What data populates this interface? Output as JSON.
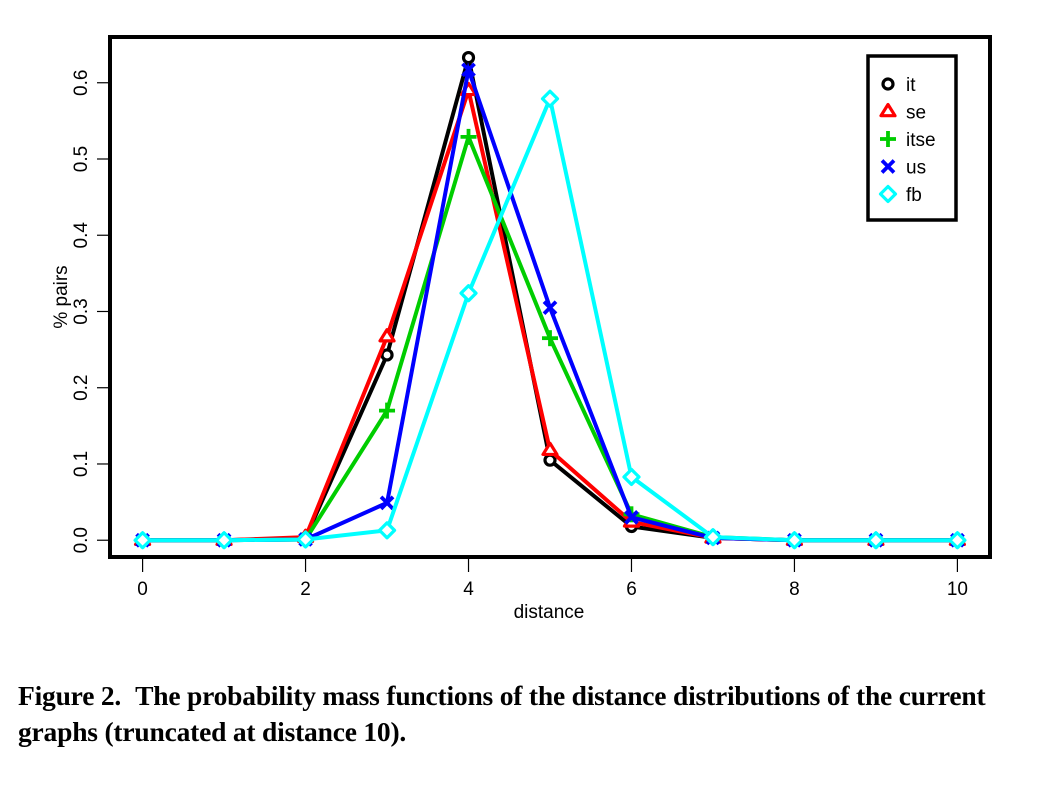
{
  "chart_data": {
    "type": "line",
    "title": "",
    "xlabel": "distance",
    "ylabel": "% pairs",
    "xlim": [
      -0.4,
      10.4
    ],
    "ylim": [
      -0.022,
      0.66
    ],
    "x": [
      0,
      1,
      2,
      3,
      4,
      5,
      6,
      7,
      8,
      9,
      10
    ],
    "xticks": [
      0,
      2,
      4,
      6,
      8,
      10
    ],
    "xtick_labels": [
      "0",
      "2",
      "4",
      "6",
      "8",
      "10"
    ],
    "yticks": [
      0.0,
      0.1,
      0.2,
      0.3,
      0.4,
      0.5,
      0.6
    ],
    "ytick_labels": [
      "0.0",
      "0.1",
      "0.2",
      "0.3",
      "0.4",
      "0.5",
      "0.6"
    ],
    "grid": false,
    "legend_position": "top-right",
    "series": [
      {
        "name": "it",
        "color": "#000000",
        "marker": "circle",
        "values": [
          0,
          0,
          0.003,
          0.243,
          0.633,
          0.105,
          0.018,
          0.003,
          0,
          0,
          0
        ]
      },
      {
        "name": "se",
        "color": "#ff0000",
        "marker": "triangle",
        "values": [
          0,
          0,
          0.004,
          0.267,
          0.59,
          0.118,
          0.024,
          0.003,
          0,
          0,
          0
        ]
      },
      {
        "name": "itse",
        "color": "#00cd00",
        "marker": "plus",
        "values": [
          0,
          0,
          0.001,
          0.17,
          0.529,
          0.265,
          0.034,
          0.004,
          0,
          0,
          0
        ]
      },
      {
        "name": "us",
        "color": "#0000ff",
        "marker": "cross",
        "values": [
          0,
          0,
          0.001,
          0.049,
          0.617,
          0.305,
          0.03,
          0.003,
          0,
          0,
          0
        ]
      },
      {
        "name": "fb",
        "color": "#00ffff",
        "marker": "diamond",
        "values": [
          0,
          0,
          0.001,
          0.013,
          0.324,
          0.579,
          0.083,
          0.004,
          0,
          0,
          0
        ]
      }
    ]
  },
  "caption": {
    "figure_number": "Figure 2.",
    "text": "The probability mass functions of the distance distributions of the current graphs (truncated at distance 10)."
  }
}
